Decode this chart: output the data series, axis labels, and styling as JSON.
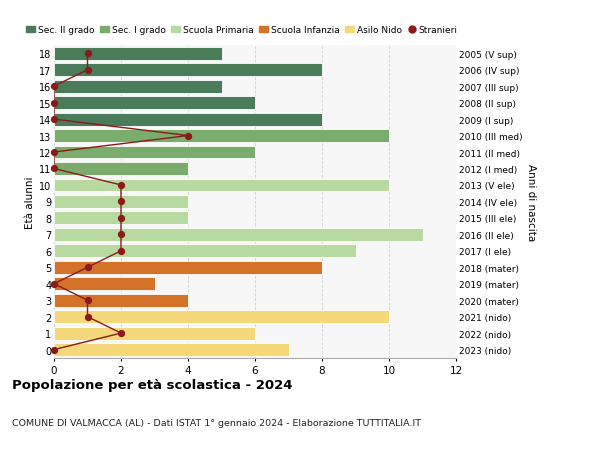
{
  "ages": [
    18,
    17,
    16,
    15,
    14,
    13,
    12,
    11,
    10,
    9,
    8,
    7,
    6,
    5,
    4,
    3,
    2,
    1,
    0
  ],
  "right_labels": [
    "2005 (V sup)",
    "2006 (IV sup)",
    "2007 (III sup)",
    "2008 (II sup)",
    "2009 (I sup)",
    "2010 (III med)",
    "2011 (II med)",
    "2012 (I med)",
    "2013 (V ele)",
    "2014 (IV ele)",
    "2015 (III ele)",
    "2016 (II ele)",
    "2017 (I ele)",
    "2018 (mater)",
    "2019 (mater)",
    "2020 (mater)",
    "2021 (nido)",
    "2022 (nido)",
    "2023 (nido)"
  ],
  "bar_values": [
    5,
    8,
    5,
    6,
    8,
    10,
    6,
    4,
    10,
    4,
    4,
    11,
    9,
    8,
    3,
    4,
    10,
    6,
    7
  ],
  "bar_colors": [
    "#4a7c59",
    "#4a7c59",
    "#4a7c59",
    "#4a7c59",
    "#4a7c59",
    "#7aac6e",
    "#7aac6e",
    "#7aac6e",
    "#b8d9a0",
    "#b8d9a0",
    "#b8d9a0",
    "#b8d9a0",
    "#b8d9a0",
    "#d4722a",
    "#d4722a",
    "#d4722a",
    "#f5d87a",
    "#f5d87a",
    "#f5d87a"
  ],
  "stranieri_ages": [
    18,
    17,
    16,
    15,
    14,
    13,
    12,
    11,
    10,
    9,
    8,
    7,
    6,
    5,
    4,
    3,
    2,
    1,
    0
  ],
  "stranieri_values": [
    1,
    1,
    0,
    0,
    0,
    4,
    0,
    0,
    2,
    2,
    2,
    2,
    2,
    1,
    0,
    1,
    1,
    2,
    0
  ],
  "stranieri_color": "#8b1a1a",
  "legend_labels": [
    "Sec. II grado",
    "Sec. I grado",
    "Scuola Primaria",
    "Scuola Infanzia",
    "Asilo Nido",
    "Stranieri"
  ],
  "legend_colors": [
    "#4a7c59",
    "#7aac6e",
    "#b8d9a0",
    "#d4722a",
    "#f5d87a",
    "#8b1a1a"
  ],
  "title": "Popolazione per età scolastica - 2024",
  "subtitle": "COMUNE DI VALMACCA (AL) - Dati ISTAT 1° gennaio 2024 - Elaborazione TUTTITALIA.IT",
  "ylabel_left": "Età alunni",
  "ylabel_right": "Anni di nascita",
  "xlim": [
    0,
    12
  ],
  "xticks": [
    0,
    2,
    4,
    6,
    8,
    10,
    12
  ],
  "bg_color": "#ffffff",
  "plot_bg_color": "#f7f7f7",
  "grid_color": "#cccccc",
  "bar_height": 0.78
}
